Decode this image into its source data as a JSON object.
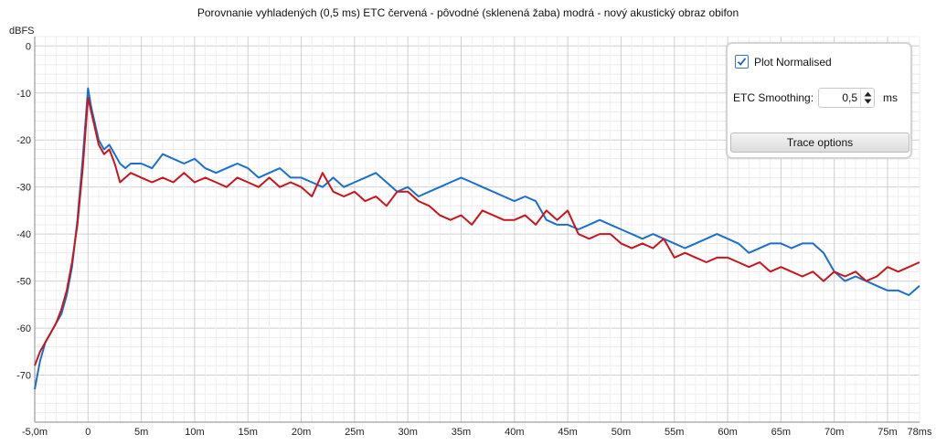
{
  "chart_data": {
    "type": "line",
    "title": "Porovnanie vyhladených (0,5 ms) ETC červená - pôvodné (sklenená žaba) modrá - nový akustický obraz obifon",
    "ylabel": "dBFS",
    "xlabel": "",
    "xlim": [
      -5.0,
      78.0
    ],
    "ylim": [
      -80,
      2
    ],
    "x_ticks": [
      -5,
      0,
      5,
      10,
      15,
      20,
      25,
      30,
      35,
      40,
      45,
      50,
      55,
      60,
      65,
      70,
      75,
      78
    ],
    "x_tick_labels": [
      "-5,0m",
      "0",
      "5m",
      "10m",
      "15m",
      "20m",
      "25m",
      "30m",
      "35m",
      "40m",
      "45m",
      "50m",
      "55m",
      "60m",
      "65m",
      "70m",
      "75m",
      "78ms"
    ],
    "y_ticks": [
      0,
      -10,
      -20,
      -30,
      -40,
      -50,
      -60,
      -70
    ],
    "y_tick_labels": [
      "0",
      "-10",
      "-20",
      "-30",
      "-40",
      "-50",
      "-60",
      "-70"
    ],
    "grid": true,
    "series": [
      {
        "name": "pôvodné (sklenená žaba)",
        "color": "#c8161d",
        "x": [
          -5,
          -4.5,
          -4,
          -3.5,
          -3,
          -2.5,
          -2,
          -1.5,
          -1,
          -0.5,
          0,
          0.3,
          0.6,
          1,
          1.5,
          2,
          2.5,
          3,
          3.5,
          4,
          5,
          6,
          7,
          8,
          9,
          10,
          11,
          12,
          13,
          14,
          15,
          16,
          17,
          18,
          19,
          20,
          21,
          22,
          23,
          24,
          25,
          26,
          27,
          28,
          29,
          30,
          31,
          32,
          33,
          34,
          35,
          36,
          37,
          38,
          39,
          40,
          41,
          42,
          43,
          44,
          45,
          46,
          47,
          48,
          49,
          50,
          51,
          52,
          53,
          54,
          55,
          56,
          57,
          58,
          59,
          60,
          61,
          62,
          63,
          64,
          65,
          66,
          67,
          68,
          69,
          70,
          71,
          72,
          73,
          74,
          75,
          76,
          77,
          78
        ],
        "y": [
          -68,
          -65,
          -63,
          -61,
          -59,
          -56,
          -52,
          -46,
          -38,
          -26,
          -11,
          -14,
          -17,
          -21,
          -23,
          -22,
          -25,
          -29,
          -28,
          -27,
          -28,
          -29,
          -28,
          -29,
          -27,
          -29,
          -28,
          -29,
          -30,
          -28,
          -29,
          -30,
          -28,
          -30,
          -29,
          -30,
          -32,
          -27,
          -31,
          -32,
          -31,
          -33,
          -32,
          -34,
          -31,
          -31,
          -33,
          -34,
          -36,
          -37,
          -36,
          -38,
          -35,
          -36,
          -37,
          -37,
          -36,
          -38,
          -35,
          -37,
          -35,
          -40,
          -41,
          -40,
          -40,
          -42,
          -43,
          -42,
          -43,
          -41,
          -45,
          -44,
          -45,
          -46,
          -45,
          -45,
          -46,
          -47,
          -46,
          -48,
          -47,
          -48,
          -49,
          -48,
          -50,
          -48,
          -49,
          -48,
          -50,
          -49,
          -47,
          -48,
          -47,
          -46
        ]
      },
      {
        "name": "nový akustický obraz obifon",
        "color": "#1a6fd1",
        "x": [
          -5,
          -4.5,
          -4,
          -3.5,
          -3,
          -2.5,
          -2,
          -1.5,
          -1,
          -0.5,
          0,
          0.3,
          0.6,
          1,
          1.5,
          2,
          2.5,
          3,
          3.5,
          4,
          5,
          6,
          7,
          8,
          9,
          10,
          11,
          12,
          13,
          14,
          15,
          16,
          17,
          18,
          19,
          20,
          21,
          22,
          23,
          24,
          25,
          26,
          27,
          28,
          29,
          30,
          31,
          32,
          33,
          34,
          35,
          36,
          37,
          38,
          39,
          40,
          41,
          42,
          43,
          44,
          45,
          46,
          47,
          48,
          49,
          50,
          51,
          52,
          53,
          54,
          55,
          56,
          57,
          58,
          59,
          60,
          61,
          62,
          63,
          64,
          65,
          66,
          67,
          68,
          69,
          70,
          71,
          72,
          73,
          74,
          75,
          76,
          77,
          78
        ],
        "y": [
          -73,
          -67,
          -63,
          -61,
          -59,
          -57,
          -53,
          -47,
          -37,
          -24,
          -9,
          -13,
          -16,
          -20,
          -22,
          -21,
          -23,
          -25,
          -26,
          -25,
          -25,
          -26,
          -23,
          -24,
          -25,
          -24,
          -26,
          -27,
          -26,
          -25,
          -26,
          -28,
          -27,
          -26,
          -28,
          -28,
          -29,
          -30,
          -28,
          -30,
          -29,
          -28,
          -27,
          -29,
          -31,
          -30,
          -32,
          -31,
          -30,
          -29,
          -28,
          -29,
          -30,
          -31,
          -32,
          -33,
          -32,
          -33,
          -37,
          -38,
          -38,
          -39,
          -38,
          -37,
          -38,
          -39,
          -40,
          -41,
          -40,
          -41,
          -42,
          -43,
          -42,
          -41,
          -40,
          -41,
          -42,
          -44,
          -43,
          -42,
          -42,
          -43,
          -42,
          -42,
          -44,
          -48,
          -50,
          -49,
          -50,
          -51,
          -52,
          -52,
          -53,
          -51
        ]
      }
    ]
  },
  "panel": {
    "plot_normalised_label": "Plot Normalised",
    "plot_normalised_checked": true,
    "etc_smoothing_label": "ETC Smoothing:",
    "etc_smoothing_value": "0,5",
    "etc_smoothing_unit": "ms",
    "trace_options_label": "Trace options"
  }
}
